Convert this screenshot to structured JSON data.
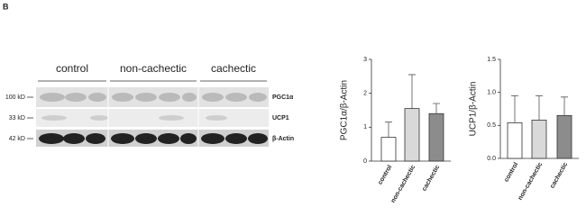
{
  "panel_label": "B",
  "blot": {
    "groups": [
      "control",
      "non-cachectic",
      "cachectic"
    ],
    "rows": [
      {
        "marker": "100 kD",
        "protein": "PGC1α"
      },
      {
        "marker": "33 kD",
        "protein": "UCP1"
      },
      {
        "marker": "42 kD",
        "protein": "β-Actin"
      }
    ]
  },
  "chart_data": [
    {
      "type": "bar",
      "y_label": "PGC1α/β-Actin",
      "categories": [
        "control",
        "non-cachectic",
        "cachectic"
      ],
      "values": [
        0.7,
        1.55,
        1.4
      ],
      "errors": [
        0.45,
        1.0,
        0.3
      ],
      "colors": [
        "#ffffff",
        "#d9d9d9",
        "#8c8c8c"
      ],
      "ylim": [
        0,
        3
      ],
      "yticks": [
        0,
        1,
        2,
        3
      ]
    },
    {
      "type": "bar",
      "y_label": "UCP1/β-Actin",
      "categories": [
        "control",
        "non-cachectic",
        "cachectic"
      ],
      "values": [
        0.54,
        0.58,
        0.65
      ],
      "errors": [
        0.41,
        0.37,
        0.28
      ],
      "colors": [
        "#ffffff",
        "#d9d9d9",
        "#8c8c8c"
      ],
      "ylim": [
        0,
        1.5
      ],
      "yticks": [
        {
          "value": 0,
          "label": "0.0"
        },
        0.5,
        {
          "value": 1,
          "label": "1.0"
        },
        1.5
      ]
    }
  ]
}
